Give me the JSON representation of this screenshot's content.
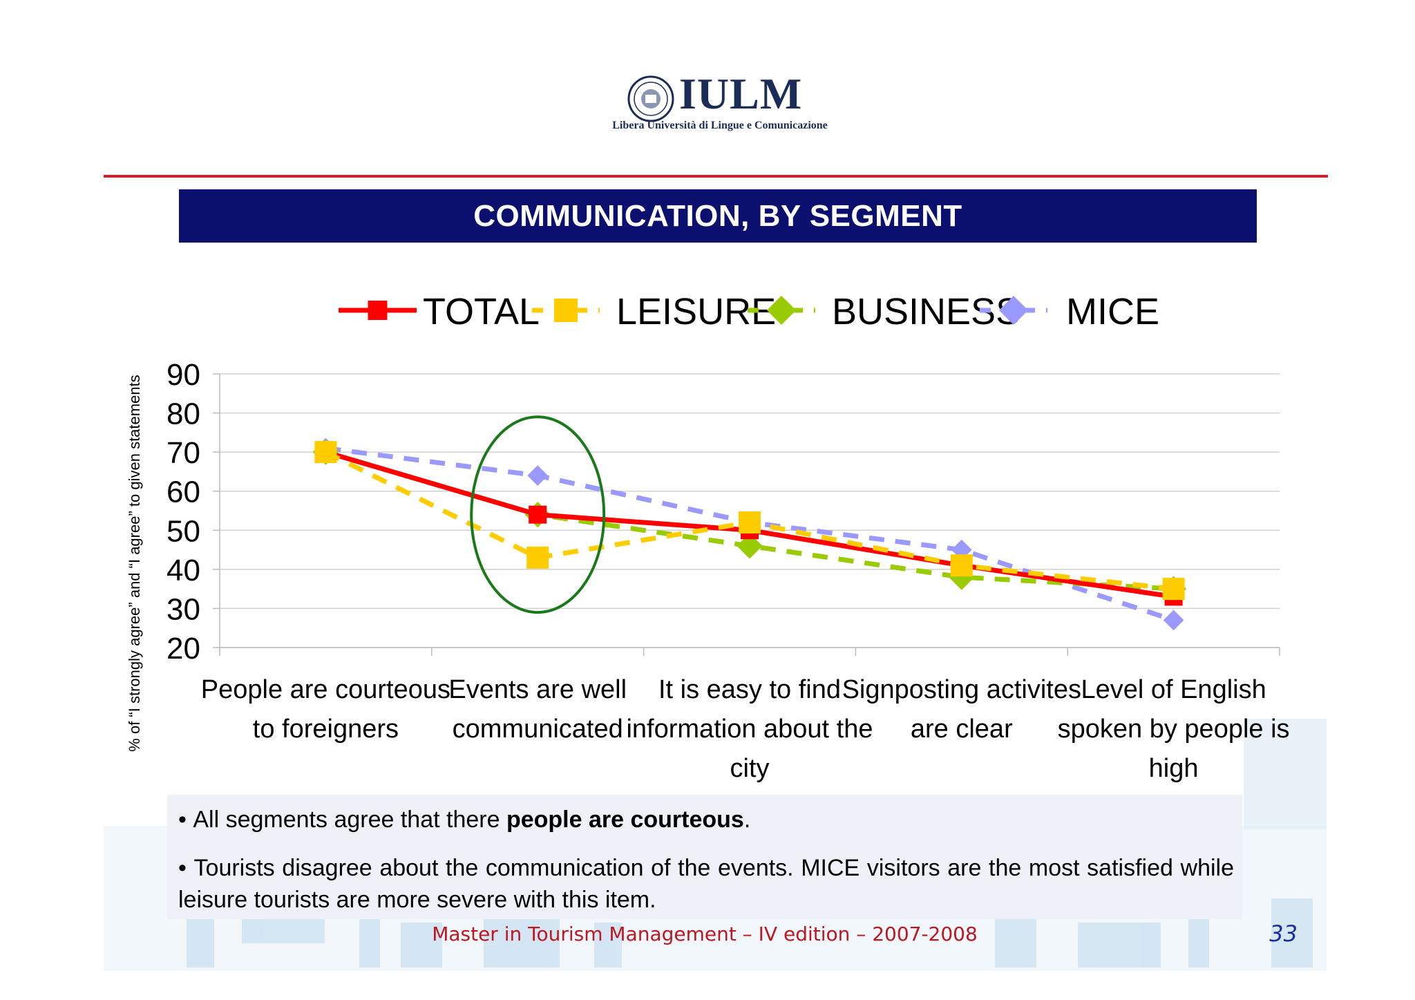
{
  "header": {
    "logo_name": "IULM",
    "logo_subtitle": "Libera Università di Lingue e Comunicazione",
    "title": "COMMUNICATION, BY SEGMENT"
  },
  "colors": {
    "title_bar": "#0b0f6e",
    "rule": "#d61f26",
    "total": "#ff0000",
    "leisure": "#ffcc00",
    "business": "#99cc00",
    "mice": "#9999ff",
    "highlight_ellipse": "#1a7a1a"
  },
  "chart_data": {
    "type": "line",
    "title": "",
    "xlabel": "",
    "ylabel": "% of “I strongly agree” and “I agree” to given statements",
    "ylim": [
      20,
      90
    ],
    "yticks": [
      "20",
      "30",
      "40",
      "50",
      "60",
      "70",
      "80",
      "90"
    ],
    "grid": true,
    "legend_position": "top",
    "categories": [
      "People are courteous to foreigners",
      "Events are well communicated",
      "It is easy to find information about the city",
      "Signposting activites are clear",
      "Level of English spoken by people is high"
    ],
    "category_lines": [
      [
        "People are courteous",
        "to foreigners"
      ],
      [
        "Events are well",
        "communicated"
      ],
      [
        "It is easy to find",
        "information about the",
        "city"
      ],
      [
        "Signposting activites",
        "are clear"
      ],
      [
        "Level of English",
        "spoken by people is",
        "high"
      ]
    ],
    "series": [
      {
        "name": "TOTAL",
        "marker": "square",
        "line": "solid",
        "color": "#ff0000",
        "values": [
          70,
          54,
          50,
          41,
          33
        ]
      },
      {
        "name": "LEISURE",
        "marker": "square",
        "line": "dashed",
        "color": "#ffcc00",
        "values": [
          70,
          43,
          52,
          41,
          35
        ]
      },
      {
        "name": "BUSINESS",
        "marker": "diamond",
        "line": "dashed",
        "color": "#99cc00",
        "values": [
          70,
          54,
          46,
          38,
          35
        ]
      },
      {
        "name": "MICE",
        "marker": "diamond",
        "line": "dashed",
        "color": "#9999ff",
        "values": [
          71,
          64,
          52,
          45,
          27
        ]
      }
    ],
    "annotation": {
      "type": "ellipse",
      "category_index": 1,
      "ymin": 29,
      "ymax": 79
    }
  },
  "notes": {
    "n1_prefix": "All segments agree that there ",
    "n1_bold": "people are courteous",
    "n1_suffix": ".",
    "n2": "Tourists disagree about the communication of the events. MICE visitors are the most satisfied while leisure tourists are  more severe with this item."
  },
  "footer": {
    "text": "Master in Tourism Management – IV edition – 2007-2008",
    "page": "33"
  }
}
